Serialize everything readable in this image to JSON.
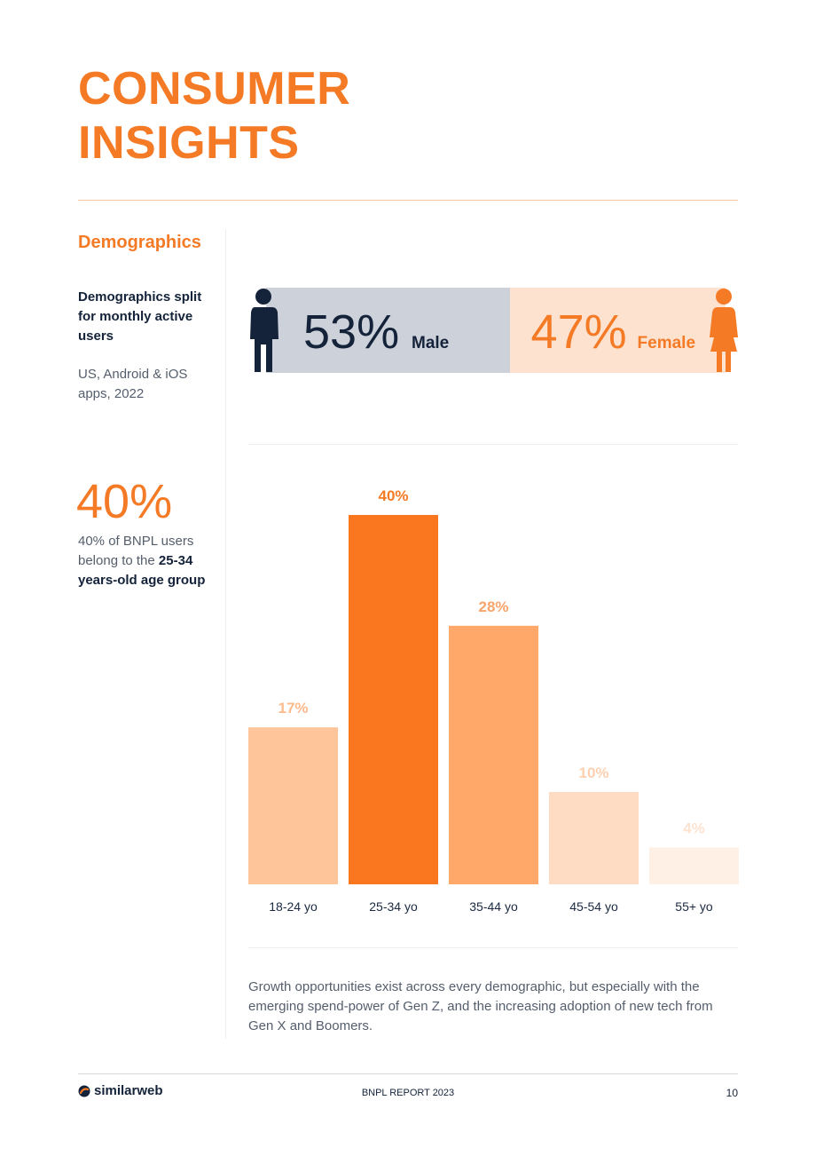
{
  "header": {
    "title_line1": "CONSUMER",
    "title_line2": "INSIGHTS"
  },
  "section": {
    "label": "Demographics",
    "split_title": "Demographics split for monthly active users",
    "split_sub": "US, Android & iOS apps, 2022"
  },
  "gender": {
    "male_pct": "53%",
    "male_label": "Male",
    "male_share": 53,
    "female_pct": "47%",
    "female_label": "Female",
    "female_share": 47
  },
  "stat": {
    "value": "40%",
    "desc_pre": "40% of BNPL users belong to the ",
    "desc_bold": "25-34 years-old age group"
  },
  "chart_data": {
    "type": "bar",
    "categories": [
      "18-24 yo",
      "25-34 yo",
      "35-44 yo",
      "45-54 yo",
      "55+ yo"
    ],
    "values": [
      17,
      40,
      28,
      10,
      4
    ],
    "value_labels": [
      "17%",
      "40%",
      "28%",
      "10%",
      "4%"
    ],
    "bar_colors": [
      "#fec59a",
      "#fa761f",
      "#ffa86a",
      "#fedcc4",
      "#fff0e5"
    ],
    "label_colors": [
      "#fdbb8c",
      "#f47a25",
      "#f8a56b",
      "#fdd0b0",
      "#fde3d0"
    ],
    "ylim": [
      0,
      40
    ],
    "grid": false
  },
  "footnote": "Growth opportunities exist across every demographic, but especially with the emerging spend-power of Gen Z, and the increasing adoption of new tech from Gen X and Boomers.",
  "footer": {
    "brand": "similarweb",
    "report": "BNPL REPORT 2023",
    "page": "10"
  },
  "icons": {
    "male": "male-person-icon",
    "female": "female-person-icon",
    "logo": "similarweb-logo-icon"
  },
  "colors": {
    "accent": "#f47a25",
    "navy": "#14233a"
  }
}
